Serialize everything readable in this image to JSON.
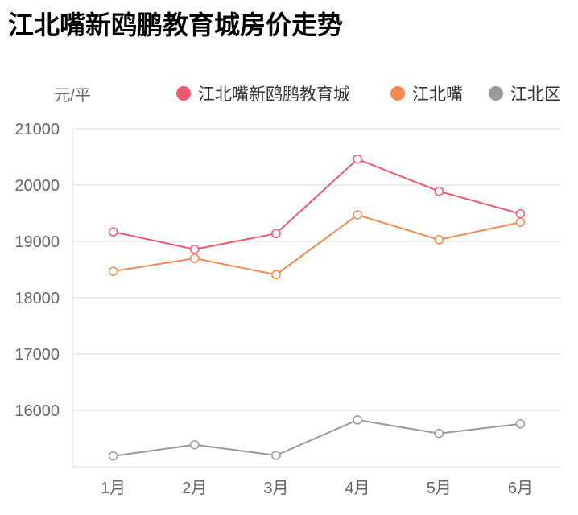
{
  "chart_data": {
    "type": "line",
    "title": "江北嘴新鸥鹏教育城房价走势",
    "ylabel": "元/平",
    "xlabel": "",
    "categories": [
      "1月",
      "2月",
      "3月",
      "4月",
      "5月",
      "6月"
    ],
    "ylim": [
      15000,
      21000
    ],
    "yticks": [
      16000,
      17000,
      18000,
      19000,
      20000,
      21000
    ],
    "grid": true,
    "legend_placement": "top-right",
    "series": [
      {
        "name": "江北嘴新鸥鹏教育城",
        "color": "#ee5a6f",
        "values": [
          19170,
          18860,
          19140,
          20460,
          19890,
          19490
        ]
      },
      {
        "name": "江北嘴",
        "color": "#f5894f",
        "values": [
          18470,
          18700,
          18410,
          19470,
          19030,
          19340
        ]
      },
      {
        "name": "江北区",
        "color": "#999999",
        "values": [
          15190,
          15390,
          15200,
          15830,
          15590,
          15760
        ]
      }
    ]
  }
}
